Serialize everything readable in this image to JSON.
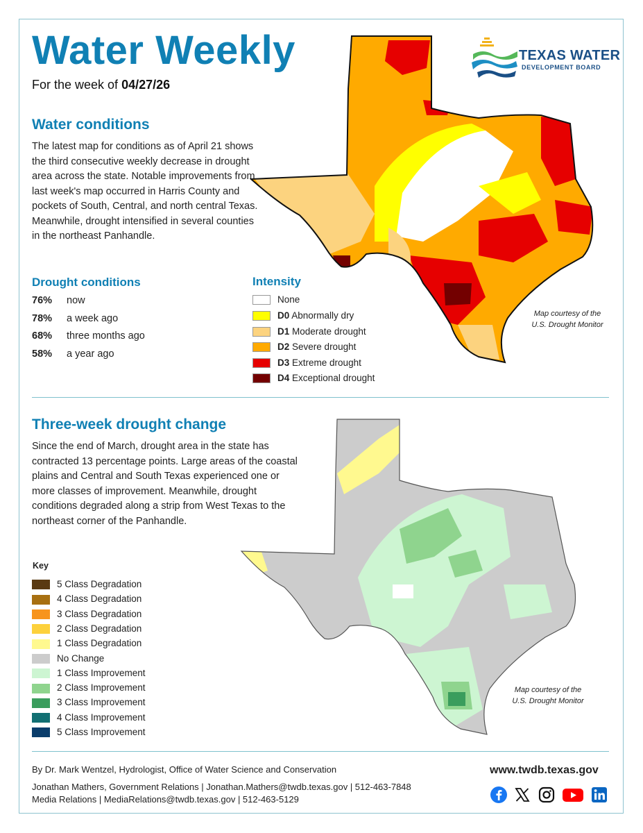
{
  "header": {
    "title": "Water Weekly",
    "subtitle_prefix": "For the week of ",
    "subtitle_date": "04/27/26",
    "logo_name": "TEXAS WATER",
    "logo_sub": "DEVELOPMENT BOARD"
  },
  "water_conditions": {
    "heading": "Water conditions",
    "body": "The latest map for conditions as of April 21 shows the third consecutive weekly decrease in drought area across the state. Notable improvements from last week's map occurred in Harris County and pockets of South, Central, and north central Texas. Meanwhile, drought intensified in several counties in the northeast Panhandle."
  },
  "drought_conditions": {
    "heading": "Drought conditions",
    "items": [
      {
        "pct": "76%",
        "label": "now"
      },
      {
        "pct": "78%",
        "label": "a week ago"
      },
      {
        "pct": "68%",
        "label": "three months ago"
      },
      {
        "pct": "58%",
        "label": "a year ago"
      }
    ]
  },
  "intensity": {
    "heading": "Intensity",
    "items": [
      {
        "code": "",
        "label": "None",
        "color": "#ffffff"
      },
      {
        "code": "D0",
        "label": "Abnormally dry",
        "color": "#ffff00"
      },
      {
        "code": "D1",
        "label": "Moderate drought",
        "color": "#fcd37f"
      },
      {
        "code": "D2",
        "label": "Severe drought",
        "color": "#ffaa00"
      },
      {
        "code": "D3",
        "label": "Extreme drought",
        "color": "#e60000"
      },
      {
        "code": "D4",
        "label": "Exceptional drought",
        "color": "#730000"
      }
    ]
  },
  "map1_courtesy": [
    "Map courtesy of the",
    "U.S. Drought Monitor"
  ],
  "three_week": {
    "heading": "Three-week drought change",
    "body": "Since the end of March, drought area in the state has contracted 13 percentage points. Large areas of the coastal plains and Central and South Texas experienced one or more classes of improvement. Meanwhile, drought conditions degraded along a strip from West Texas to the northeast corner of the Panhandle."
  },
  "key": {
    "heading": "Key",
    "items": [
      {
        "label": "5 Class Degradation",
        "color": "#5a3a12"
      },
      {
        "label": "4 Class Degradation",
        "color": "#a87011"
      },
      {
        "label": "3 Class Degradation",
        "color": "#f7941d"
      },
      {
        "label": "2 Class Degradation",
        "color": "#fdd13c"
      },
      {
        "label": "1 Class Degradation",
        "color": "#fff98f"
      },
      {
        "label": "No Change",
        "color": "#cccccc"
      },
      {
        "label": "1 Class Improvement",
        "color": "#cdf5d2"
      },
      {
        "label": "2 Class Improvement",
        "color": "#8fd48e"
      },
      {
        "label": "3 Class Improvement",
        "color": "#3a9d5d"
      },
      {
        "label": "4 Class Improvement",
        "color": "#126f72"
      },
      {
        "label": "5 Class Improvement",
        "color": "#0b3d6b"
      }
    ]
  },
  "map2_courtesy": [
    "Map courtesy of the",
    "U.S. Drought Monitor"
  ],
  "footer": {
    "author": "By Dr. Mark Wentzel, Hydrologist, Office of Water Science and Conservation",
    "contact1": "Jonathan Mathers, Government Relations | Jonathan.Mathers@twdb.texas.gov | 512-463-7848",
    "contact2": "Media Relations | MediaRelations@twdb.texas.gov | 512-463-5129",
    "url": "www.twdb.texas.gov",
    "social": [
      "facebook-icon",
      "x-icon",
      "instagram-icon",
      "youtube-icon",
      "linkedin-icon"
    ]
  }
}
